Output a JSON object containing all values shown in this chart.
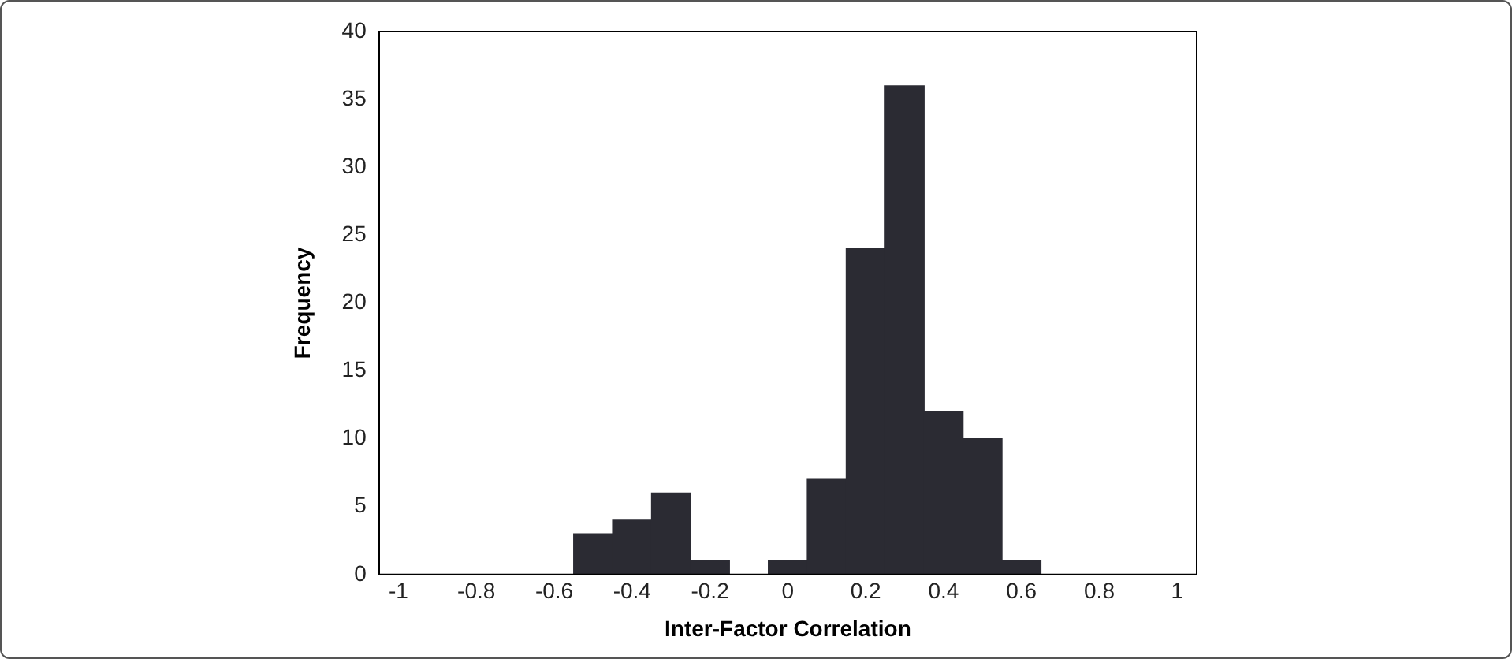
{
  "chart_data": {
    "type": "histogram",
    "xlabel": "Inter-Factor Correlation",
    "ylabel": "Frequency",
    "bins": [
      -1.05,
      -0.95,
      -0.85,
      -0.75,
      -0.65,
      -0.55,
      -0.45,
      -0.35,
      -0.25,
      -0.15,
      -0.05,
      0.05,
      0.15,
      0.25,
      0.35,
      0.45,
      0.55,
      0.65,
      0.75,
      0.85,
      0.95,
      1.05
    ],
    "values": [
      0,
      0,
      0,
      0,
      0,
      3,
      4,
      6,
      1,
      0,
      1,
      7,
      24,
      36,
      12,
      10,
      1,
      0,
      0,
      0,
      0
    ],
    "color": "#2b2b33",
    "xlim": [
      -1.05,
      1.05
    ],
    "xticks": [
      -1,
      -0.8,
      -0.6,
      -0.4,
      -0.2,
      0,
      0.2,
      0.4,
      0.6,
      0.8,
      1
    ],
    "ylim": [
      0,
      40
    ],
    "yticks": [
      0,
      5,
      10,
      15,
      20,
      25,
      30,
      35,
      40
    ],
    "grid": false,
    "legend": false
  }
}
